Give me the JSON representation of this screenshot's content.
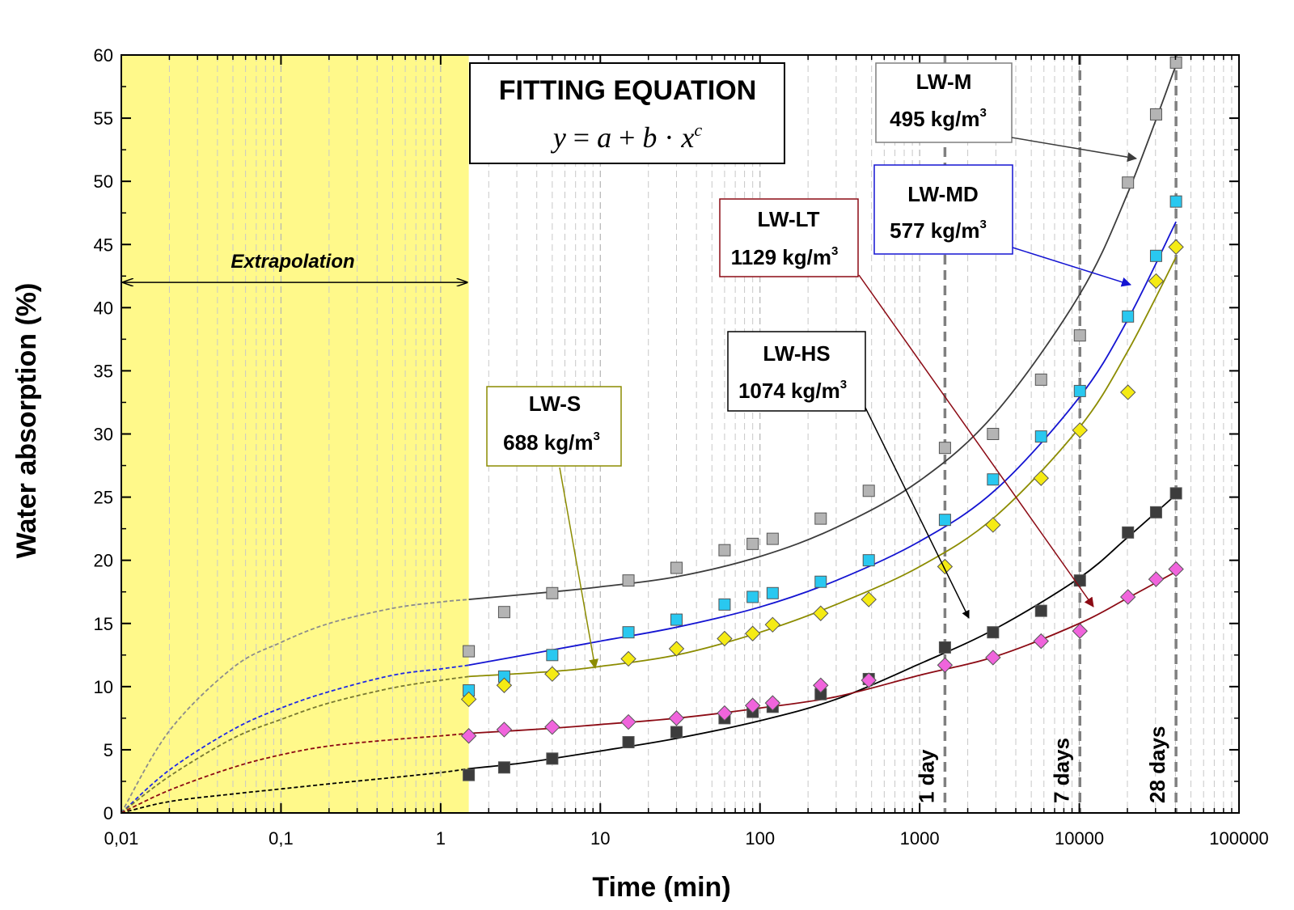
{
  "chart_data": {
    "type": "scatter",
    "xlabel": "Time (min)",
    "ylabel": "Water absorption (%)",
    "x_scale": "log",
    "xlim": [
      0.01,
      100000
    ],
    "ylim": [
      0,
      60
    ],
    "x_ticks": [
      {
        "v": 0.01,
        "label": "0,01"
      },
      {
        "v": 0.1,
        "label": "0,1"
      },
      {
        "v": 1,
        "label": "1"
      },
      {
        "v": 10,
        "label": "10"
      },
      {
        "v": 100,
        "label": "100"
      },
      {
        "v": 1000,
        "label": "1000"
      },
      {
        "v": 10000,
        "label": "10000"
      },
      {
        "v": 100000,
        "label": "100000"
      }
    ],
    "y_ticks": [
      0,
      5,
      10,
      15,
      20,
      25,
      30,
      35,
      40,
      45,
      50,
      55,
      60
    ],
    "grid": "minor vertical dashed (log decades)",
    "extrapolation": {
      "label": "Extrapolation",
      "x_from": 0.01,
      "x_to": 1.5,
      "color": "#fff98a"
    },
    "equation": {
      "title": "FITTING EQUATION",
      "formula": "y = a + b · x^c"
    },
    "markers": [
      {
        "x": 1440,
        "label": "1 day"
      },
      {
        "x": 10080,
        "label": "7 days"
      },
      {
        "x": 40320,
        "label": "28 days"
      }
    ],
    "series": [
      {
        "name": "LW-M",
        "density": "495 kg/m",
        "marker": "square",
        "color": "#b4b4b4",
        "line_color": "#3c3c3c",
        "dash_color": "#8c8c8c",
        "x": [
          1.5,
          2.5,
          5,
          15,
          30,
          60,
          90,
          120,
          240,
          480,
          1440,
          2880,
          5760,
          10080,
          20160,
          30240,
          40320
        ],
        "y": [
          12.8,
          15.9,
          17.4,
          18.4,
          19.4,
          20.8,
          21.3,
          21.7,
          23.3,
          25.5,
          28.9,
          30.0,
          34.3,
          37.8,
          49.9,
          55.3,
          59.4
        ],
        "fit_x": [
          0.01,
          0.02,
          0.05,
          0.1,
          0.2,
          0.5,
          1,
          1.5,
          5,
          10,
          30,
          100,
          300,
          1000,
          3000,
          10000,
          20000,
          40320
        ],
        "fit_y": [
          0,
          6.5,
          11.5,
          13.5,
          15.0,
          16.2,
          16.7,
          16.9,
          17.5,
          17.9,
          18.7,
          20.3,
          22.6,
          26.3,
          31.7,
          41.0,
          49.0,
          59.2
        ]
      },
      {
        "name": "LW-MD",
        "density": "577 kg/m",
        "marker": "square",
        "color": "#29c8f0",
        "line_color": "#1414d2",
        "dash_color": "#1e28e6",
        "x": [
          1.5,
          2.5,
          5,
          15,
          30,
          60,
          90,
          120,
          240,
          480,
          1440,
          2880,
          5760,
          10080,
          20160,
          30240,
          40320
        ],
        "y": [
          9.7,
          10.8,
          12.5,
          14.3,
          15.3,
          16.5,
          17.1,
          17.4,
          18.3,
          20.0,
          23.2,
          26.4,
          29.8,
          33.4,
          39.3,
          44.1,
          48.4
        ],
        "fit_x": [
          0.01,
          0.02,
          0.05,
          0.1,
          0.2,
          0.5,
          1,
          1.5,
          5,
          10,
          30,
          100,
          300,
          1000,
          3000,
          10000,
          20000,
          40320
        ],
        "fit_y": [
          0,
          3.4,
          6.6,
          8.3,
          9.6,
          10.9,
          11.4,
          11.7,
          12.9,
          13.6,
          14.7,
          16.3,
          18.4,
          21.5,
          25.6,
          32.9,
          39.0,
          46.8
        ]
      },
      {
        "name": "LW-S",
        "density": "688 kg/m",
        "marker": "diamond",
        "color": "#f5eb14",
        "line_color": "#8c8c00",
        "dash_color": "#787832",
        "x": [
          1.5,
          2.5,
          5,
          15,
          30,
          60,
          90,
          120,
          240,
          480,
          1440,
          2880,
          5760,
          10080,
          20160,
          30240,
          40320
        ],
        "y": [
          9.0,
          10.1,
          11.0,
          12.2,
          13.0,
          13.8,
          14.2,
          14.9,
          15.8,
          16.9,
          19.5,
          22.8,
          26.5,
          30.3,
          33.3,
          42.1,
          44.8
        ],
        "fit_x": [
          0.01,
          0.02,
          0.05,
          0.1,
          0.2,
          0.5,
          1,
          1.5,
          5,
          10,
          30,
          100,
          300,
          1000,
          3000,
          10000,
          20000,
          40320
        ],
        "fit_y": [
          0,
          2.9,
          5.9,
          7.4,
          8.7,
          9.9,
          10.5,
          10.8,
          11.2,
          11.6,
          12.5,
          14.3,
          16.5,
          19.5,
          23.5,
          30.5,
          36.5,
          44.0
        ]
      },
      {
        "name": "LW-HS",
        "density": "1074 kg/m",
        "marker": "square",
        "color": "#3c3c3c",
        "line_color": "#000000",
        "dash_color": "#000000",
        "x": [
          1.5,
          2.5,
          5,
          15,
          30,
          60,
          90,
          120,
          240,
          480,
          1440,
          2880,
          5760,
          10080,
          20160,
          30240,
          40320
        ],
        "y": [
          3.0,
          3.6,
          4.3,
          5.6,
          6.4,
          7.5,
          8.0,
          8.4,
          9.4,
          10.6,
          13.1,
          14.3,
          16.0,
          18.4,
          22.2,
          23.8,
          25.3
        ],
        "fit_x": [
          0.01,
          0.02,
          0.05,
          0.1,
          0.2,
          0.5,
          1,
          1.5,
          3,
          5,
          10,
          30,
          100,
          300,
          1000,
          3000,
          10000,
          20000,
          40320
        ],
        "fit_y": [
          0,
          0.9,
          1.5,
          1.9,
          2.3,
          2.8,
          3.2,
          3.5,
          3.9,
          4.3,
          4.9,
          5.9,
          7.3,
          9.0,
          11.8,
          14.6,
          18.6,
          21.8,
          25.2
        ]
      },
      {
        "name": "LW-LT",
        "density": "1129 kg/m",
        "marker": "diamond",
        "color": "#f064dc",
        "line_color": "#8c0a14",
        "dash_color": "#8c0a14",
        "x": [
          1.5,
          2.5,
          5,
          15,
          30,
          60,
          90,
          120,
          240,
          480,
          1440,
          2880,
          5760,
          10080,
          20160,
          30240,
          40320
        ],
        "y": [
          6.1,
          6.6,
          6.8,
          7.2,
          7.5,
          7.9,
          8.5,
          8.7,
          10.1,
          10.5,
          11.7,
          12.3,
          13.6,
          14.4,
          17.1,
          18.5,
          19.3
        ],
        "fit_x": [
          0.01,
          0.02,
          0.05,
          0.1,
          0.2,
          0.5,
          1,
          1.5,
          5,
          10,
          30,
          100,
          300,
          1000,
          3000,
          10000,
          20000,
          40320
        ],
        "fit_y": [
          0,
          1.8,
          3.6,
          4.6,
          5.3,
          5.8,
          6.1,
          6.3,
          6.7,
          7.0,
          7.5,
          8.3,
          9.2,
          10.9,
          12.4,
          15.0,
          17.0,
          19.1
        ]
      }
    ],
    "callouts": [
      {
        "series": "LW-M",
        "label": "LW-M",
        "density": "495 kg/m",
        "sup": "3",
        "border": "#7f7f7f"
      },
      {
        "series": "LW-MD",
        "label": "LW-MD",
        "density": "577 kg/m",
        "sup": "3",
        "border": "#1414d2"
      },
      {
        "series": "LW-LT",
        "label": "LW-LT",
        "density": "1129 kg/m",
        "sup": "3",
        "border": "#8c0a14"
      },
      {
        "series": "LW-HS",
        "label": "LW-HS",
        "density": "1074 kg/m",
        "sup": "3",
        "border": "#000000"
      },
      {
        "series": "LW-S",
        "label": "LW-S",
        "density": "688 kg/m",
        "sup": "3",
        "border": "#8c8c00"
      }
    ]
  }
}
